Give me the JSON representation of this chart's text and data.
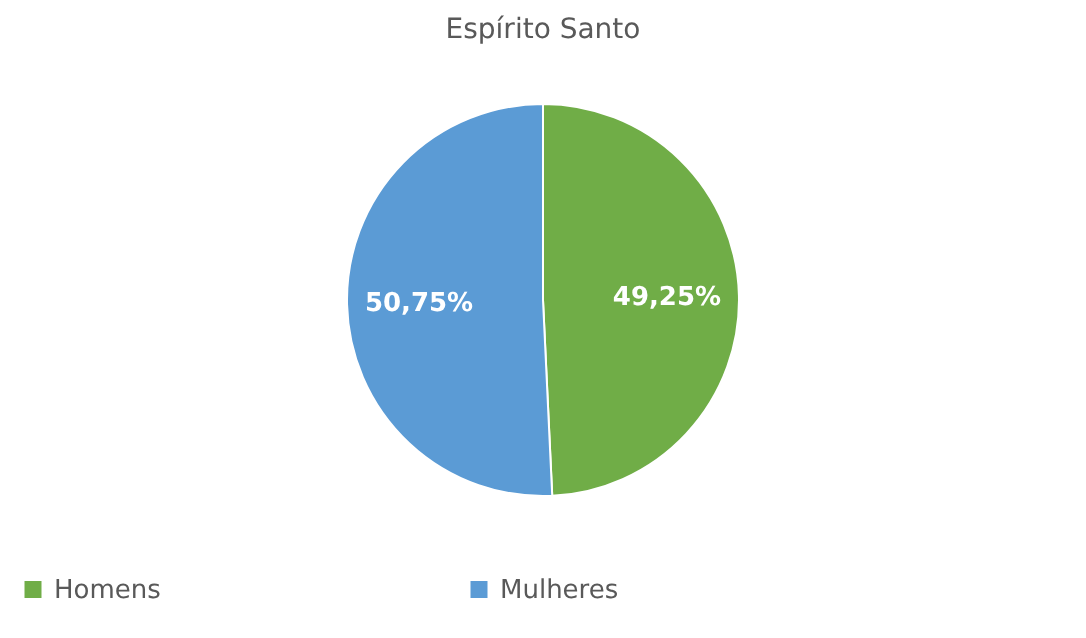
{
  "chart_data": {
    "type": "pie",
    "title": "Espírito Santo",
    "categories": [
      "Homens",
      "Mulheres"
    ],
    "values": [
      49.25,
      50.75
    ],
    "colors": [
      "#70ad47",
      "#5b9bd5"
    ],
    "value_labels": [
      "49,25%",
      "50,75%"
    ],
    "legend": "bottom"
  }
}
